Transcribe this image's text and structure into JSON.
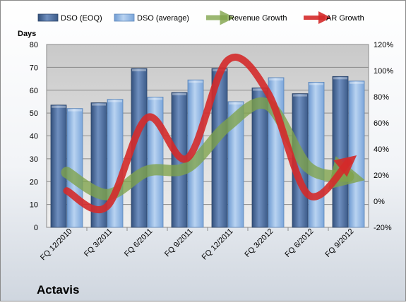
{
  "chart_data": {
    "type": "bar",
    "title": "Actavis",
    "ylabel": "Days",
    "categories": [
      "FQ 12/2010",
      "FQ 3/2011",
      "FQ 6/2011",
      "FQ 9/2011",
      "FQ 12/2011",
      "FQ 3/2012",
      "FQ 6/2012",
      "FQ 9/2012"
    ],
    "ylim": [
      0,
      80
    ],
    "yticks": [
      0,
      10,
      20,
      30,
      40,
      50,
      60,
      70,
      80
    ],
    "y2lim": [
      -20,
      120
    ],
    "y2ticks": [
      "-20%",
      "0%",
      "20%",
      "40%",
      "60%",
      "80%",
      "100%",
      "120%"
    ],
    "series": [
      {
        "name": "DSO (EOQ)",
        "kind": "bar",
        "axis": "left",
        "color": "#4a6a99",
        "values": [
          53.5,
          54.5,
          69.5,
          59,
          69.5,
          61,
          58.5,
          66
        ]
      },
      {
        "name": "DSO (average)",
        "kind": "bar",
        "axis": "left",
        "color": "#8fb4e3",
        "values": [
          52,
          56,
          57,
          64.5,
          55,
          65.5,
          63.5,
          64
        ]
      },
      {
        "name": "Revenue Growth",
        "kind": "line",
        "axis": "right",
        "color": "#7fa34a",
        "values": [
          22,
          5,
          23,
          26,
          58,
          74,
          26,
          19
        ]
      },
      {
        "name": "AR Growth",
        "kind": "line",
        "axis": "right",
        "color": "#d42a2a",
        "values": [
          8,
          -4,
          64,
          33,
          108,
          83,
          5,
          30
        ]
      }
    ],
    "grid": true,
    "legend_position": "top"
  }
}
